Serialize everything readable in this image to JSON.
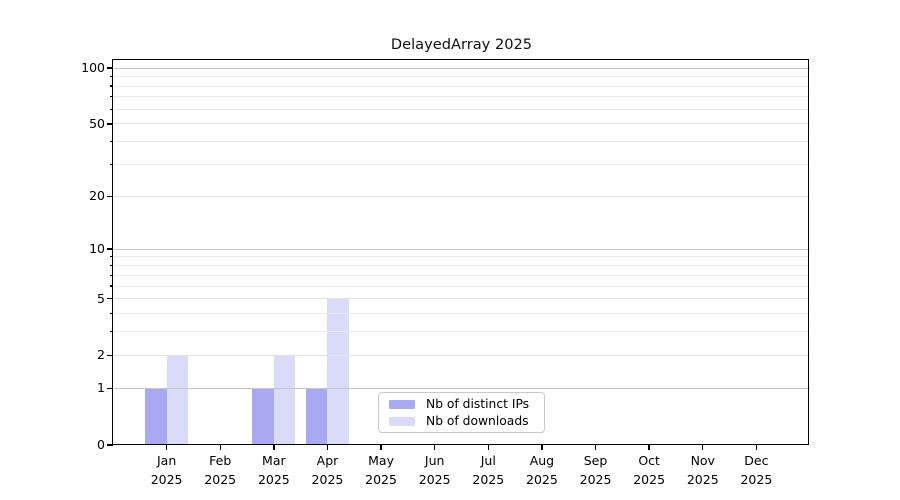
{
  "chart_data": {
    "type": "bar",
    "title": "DelayedArray 2025",
    "categories": [
      "Jan",
      "Feb",
      "Mar",
      "Apr",
      "May",
      "Jun",
      "Jul",
      "Aug",
      "Sep",
      "Oct",
      "Nov",
      "Dec"
    ],
    "category_year": "2025",
    "series": [
      {
        "name": "Nb of distinct IPs",
        "color": "#a9a9f2",
        "values": [
          1,
          0,
          1,
          1,
          0,
          0,
          0,
          0,
          0,
          0,
          0,
          0
        ]
      },
      {
        "name": "Nb of downloads",
        "color": "#dadaf9",
        "values": [
          2,
          0,
          2,
          5,
          0,
          0,
          0,
          0,
          0,
          0,
          0,
          0
        ]
      }
    ],
    "y_axis": {
      "scale": "log10(1+v)",
      "tick_labels": [
        "0",
        "1",
        "2",
        "5",
        "10",
        "20",
        "50",
        "100"
      ],
      "tick_values": [
        0,
        1,
        2,
        5,
        10,
        20,
        50,
        100
      ],
      "minor_tick_values": [
        3,
        4,
        6,
        7,
        8,
        9,
        30,
        40,
        60,
        70,
        80,
        90
      ],
      "max_tick_value": 100
    },
    "grid": {
      "decade_values": [
        1,
        10,
        100
      ],
      "decade_color": "#c6c6c6",
      "labeled_minor_color": "#e3e3e3",
      "minor_color": "#ebebeb"
    },
    "legend": {
      "position": "inside-bottom-left-of-center"
    },
    "xlabel": "",
    "ylabel": ""
  }
}
